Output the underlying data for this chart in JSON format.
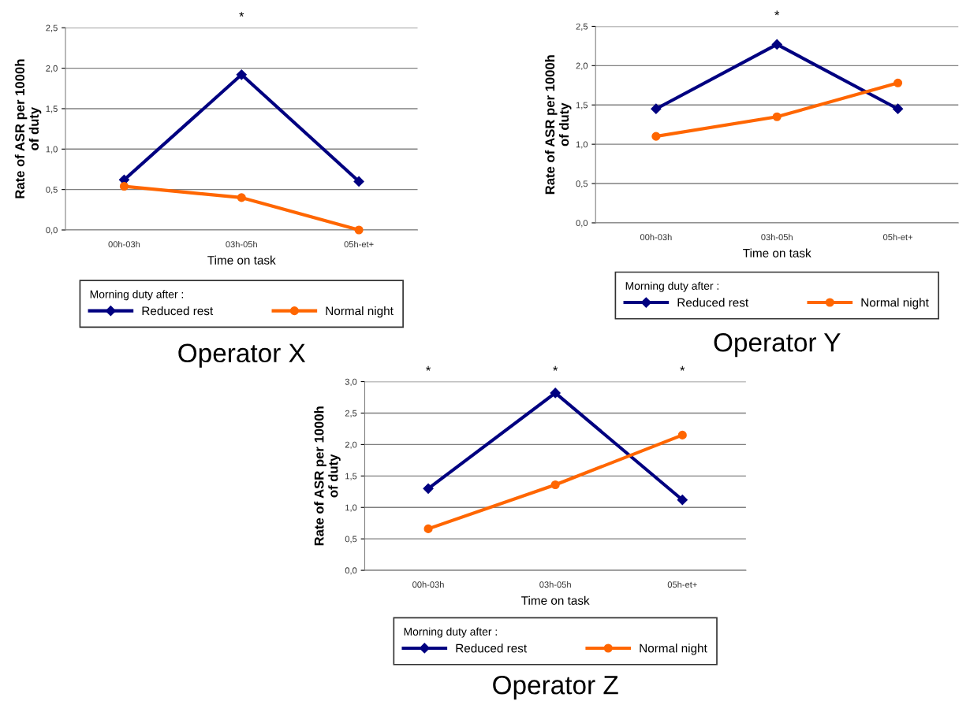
{
  "chart_data": [
    {
      "type": "line",
      "title": "Operator X",
      "xlabel": "Time on task",
      "ylabel": "Rate of ASR per 1000h\nof duty",
      "legend_title": "Morning duty after :",
      "legend": "bottom",
      "grid": "y",
      "categories": [
        "00h-03h",
        "03h-05h",
        "05h-et+"
      ],
      "series": [
        {
          "name": "Reduced rest",
          "color": "#000080",
          "marker": "diamond",
          "values": [
            0.62,
            1.92,
            0.6
          ]
        },
        {
          "name": "Normal night",
          "color": "#ff6600",
          "marker": "circle",
          "values": [
            0.54,
            0.4,
            0.0
          ]
        }
      ],
      "ylim": [
        0,
        2.5
      ],
      "yticks": [
        {
          "value": 0,
          "label": "0,0"
        },
        {
          "value": 0.5,
          "label": "0,5"
        },
        {
          "value": 1,
          "label": "1,0"
        },
        {
          "value": 1.5,
          "label": "1,5"
        },
        {
          "value": 2,
          "label": "2,0"
        },
        {
          "value": 2.5,
          "label": "2,5"
        }
      ],
      "annotations": [
        "*"
      ]
    },
    {
      "type": "line",
      "title": "Operator Y",
      "xlabel": "Time on task",
      "ylabel": "Rate of ASR per 1000h\nof duty",
      "legend_title": "Morning duty after :",
      "legend": "bottom",
      "grid": "y",
      "categories": [
        "00h-03h",
        "03h-05h",
        "05h-et+"
      ],
      "series": [
        {
          "name": "Reduced rest",
          "color": "#000080",
          "marker": "diamond",
          "values": [
            1.45,
            2.27,
            1.45
          ]
        },
        {
          "name": "Normal night",
          "color": "#ff6600",
          "marker": "circle",
          "values": [
            1.1,
            1.35,
            1.78
          ]
        }
      ],
      "ylim": [
        0,
        2.5
      ],
      "yticks": [
        {
          "value": 0,
          "label": "0,0"
        },
        {
          "value": 0.5,
          "label": "0,5"
        },
        {
          "value": 1,
          "label": "1,0"
        },
        {
          "value": 1.5,
          "label": "1,5"
        },
        {
          "value": 2,
          "label": "2,0"
        },
        {
          "value": 2.5,
          "label": "2,5"
        }
      ],
      "annotations": [
        "*"
      ]
    },
    {
      "type": "line",
      "title": "Operator Z",
      "xlabel": "Time on task",
      "ylabel": "Rate of ASR per 1000h\nof duty",
      "legend_title": "Morning duty after :",
      "legend": "bottom",
      "grid": "y",
      "categories": [
        "00h-03h",
        "03h-05h",
        "05h-et+"
      ],
      "series": [
        {
          "name": "Reduced rest",
          "color": "#000080",
          "marker": "diamond",
          "values": [
            1.3,
            2.82,
            1.12
          ]
        },
        {
          "name": "Normal night",
          "color": "#ff6600",
          "marker": "circle",
          "values": [
            0.66,
            1.36,
            2.15
          ]
        }
      ],
      "ylim": [
        0,
        3
      ],
      "yticks": [
        {
          "value": 0,
          "label": "0,0"
        },
        {
          "value": 0.5,
          "label": "0,5"
        },
        {
          "value": 1,
          "label": "1,0"
        },
        {
          "value": 1.5,
          "label": "1,5"
        },
        {
          "value": 2,
          "label": "2,0"
        },
        {
          "value": 2.5,
          "label": "2,5"
        },
        {
          "value": 3,
          "label": "3,0"
        }
      ],
      "annotations": [
        "*",
        "*",
        "*"
      ]
    }
  ]
}
